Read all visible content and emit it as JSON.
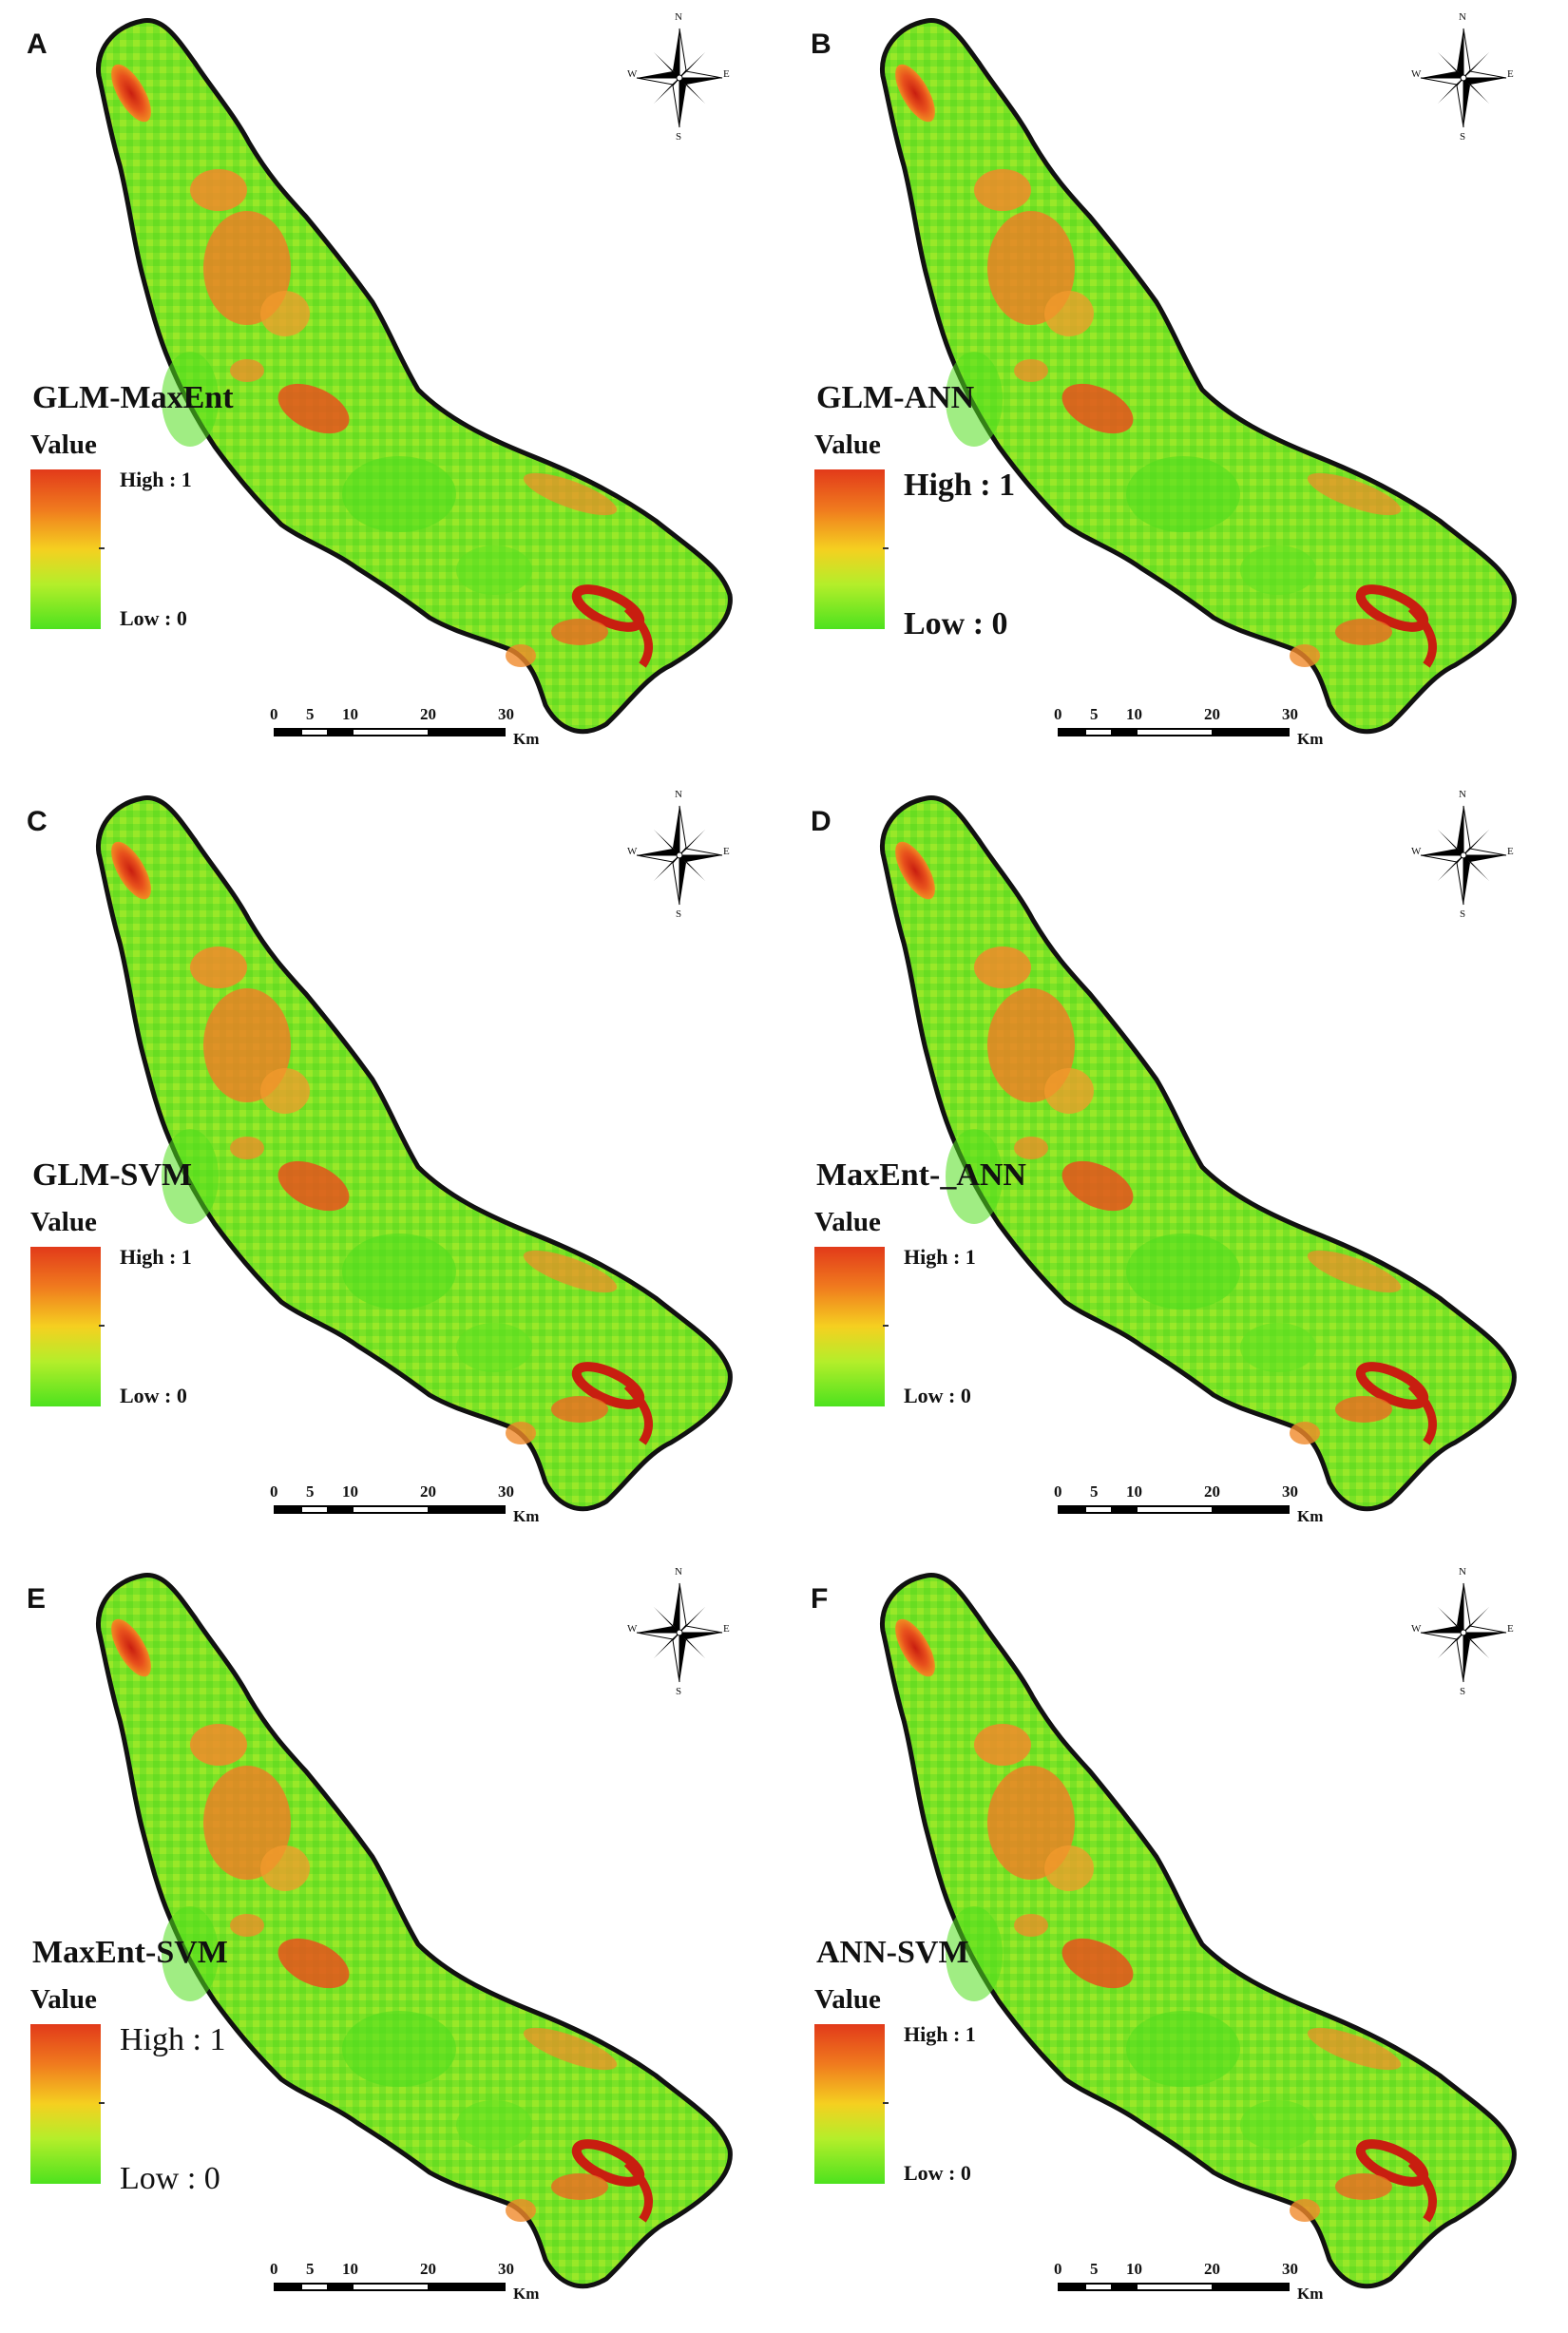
{
  "panels": [
    {
      "letter": "A",
      "model": "GLM-MaxEnt",
      "style": "default"
    },
    {
      "letter": "B",
      "model": "GLM-ANN",
      "style": "largeB"
    },
    {
      "letter": "C",
      "model": "GLM-SVM",
      "style": "default"
    },
    {
      "letter": "D",
      "model": "MaxEnt-_ANN",
      "style": "default"
    },
    {
      "letter": "E",
      "model": "MaxEnt-SVM",
      "style": "large"
    },
    {
      "letter": "F",
      "model": "ANN-SVM",
      "style": "default"
    }
  ],
  "legend": {
    "title": "Value",
    "high": "High : 1",
    "low": "Low : 0",
    "colors": [
      "#e23a1a",
      "#f07a1e",
      "#f5d020",
      "#b4ee2a",
      "#4de21e"
    ]
  },
  "scale_bar": {
    "ticks": [
      "0",
      "5",
      "10",
      "20",
      "30"
    ],
    "unit": "Km"
  },
  "compass": {
    "n": "N",
    "s": "S",
    "e": "E",
    "w": "W"
  }
}
